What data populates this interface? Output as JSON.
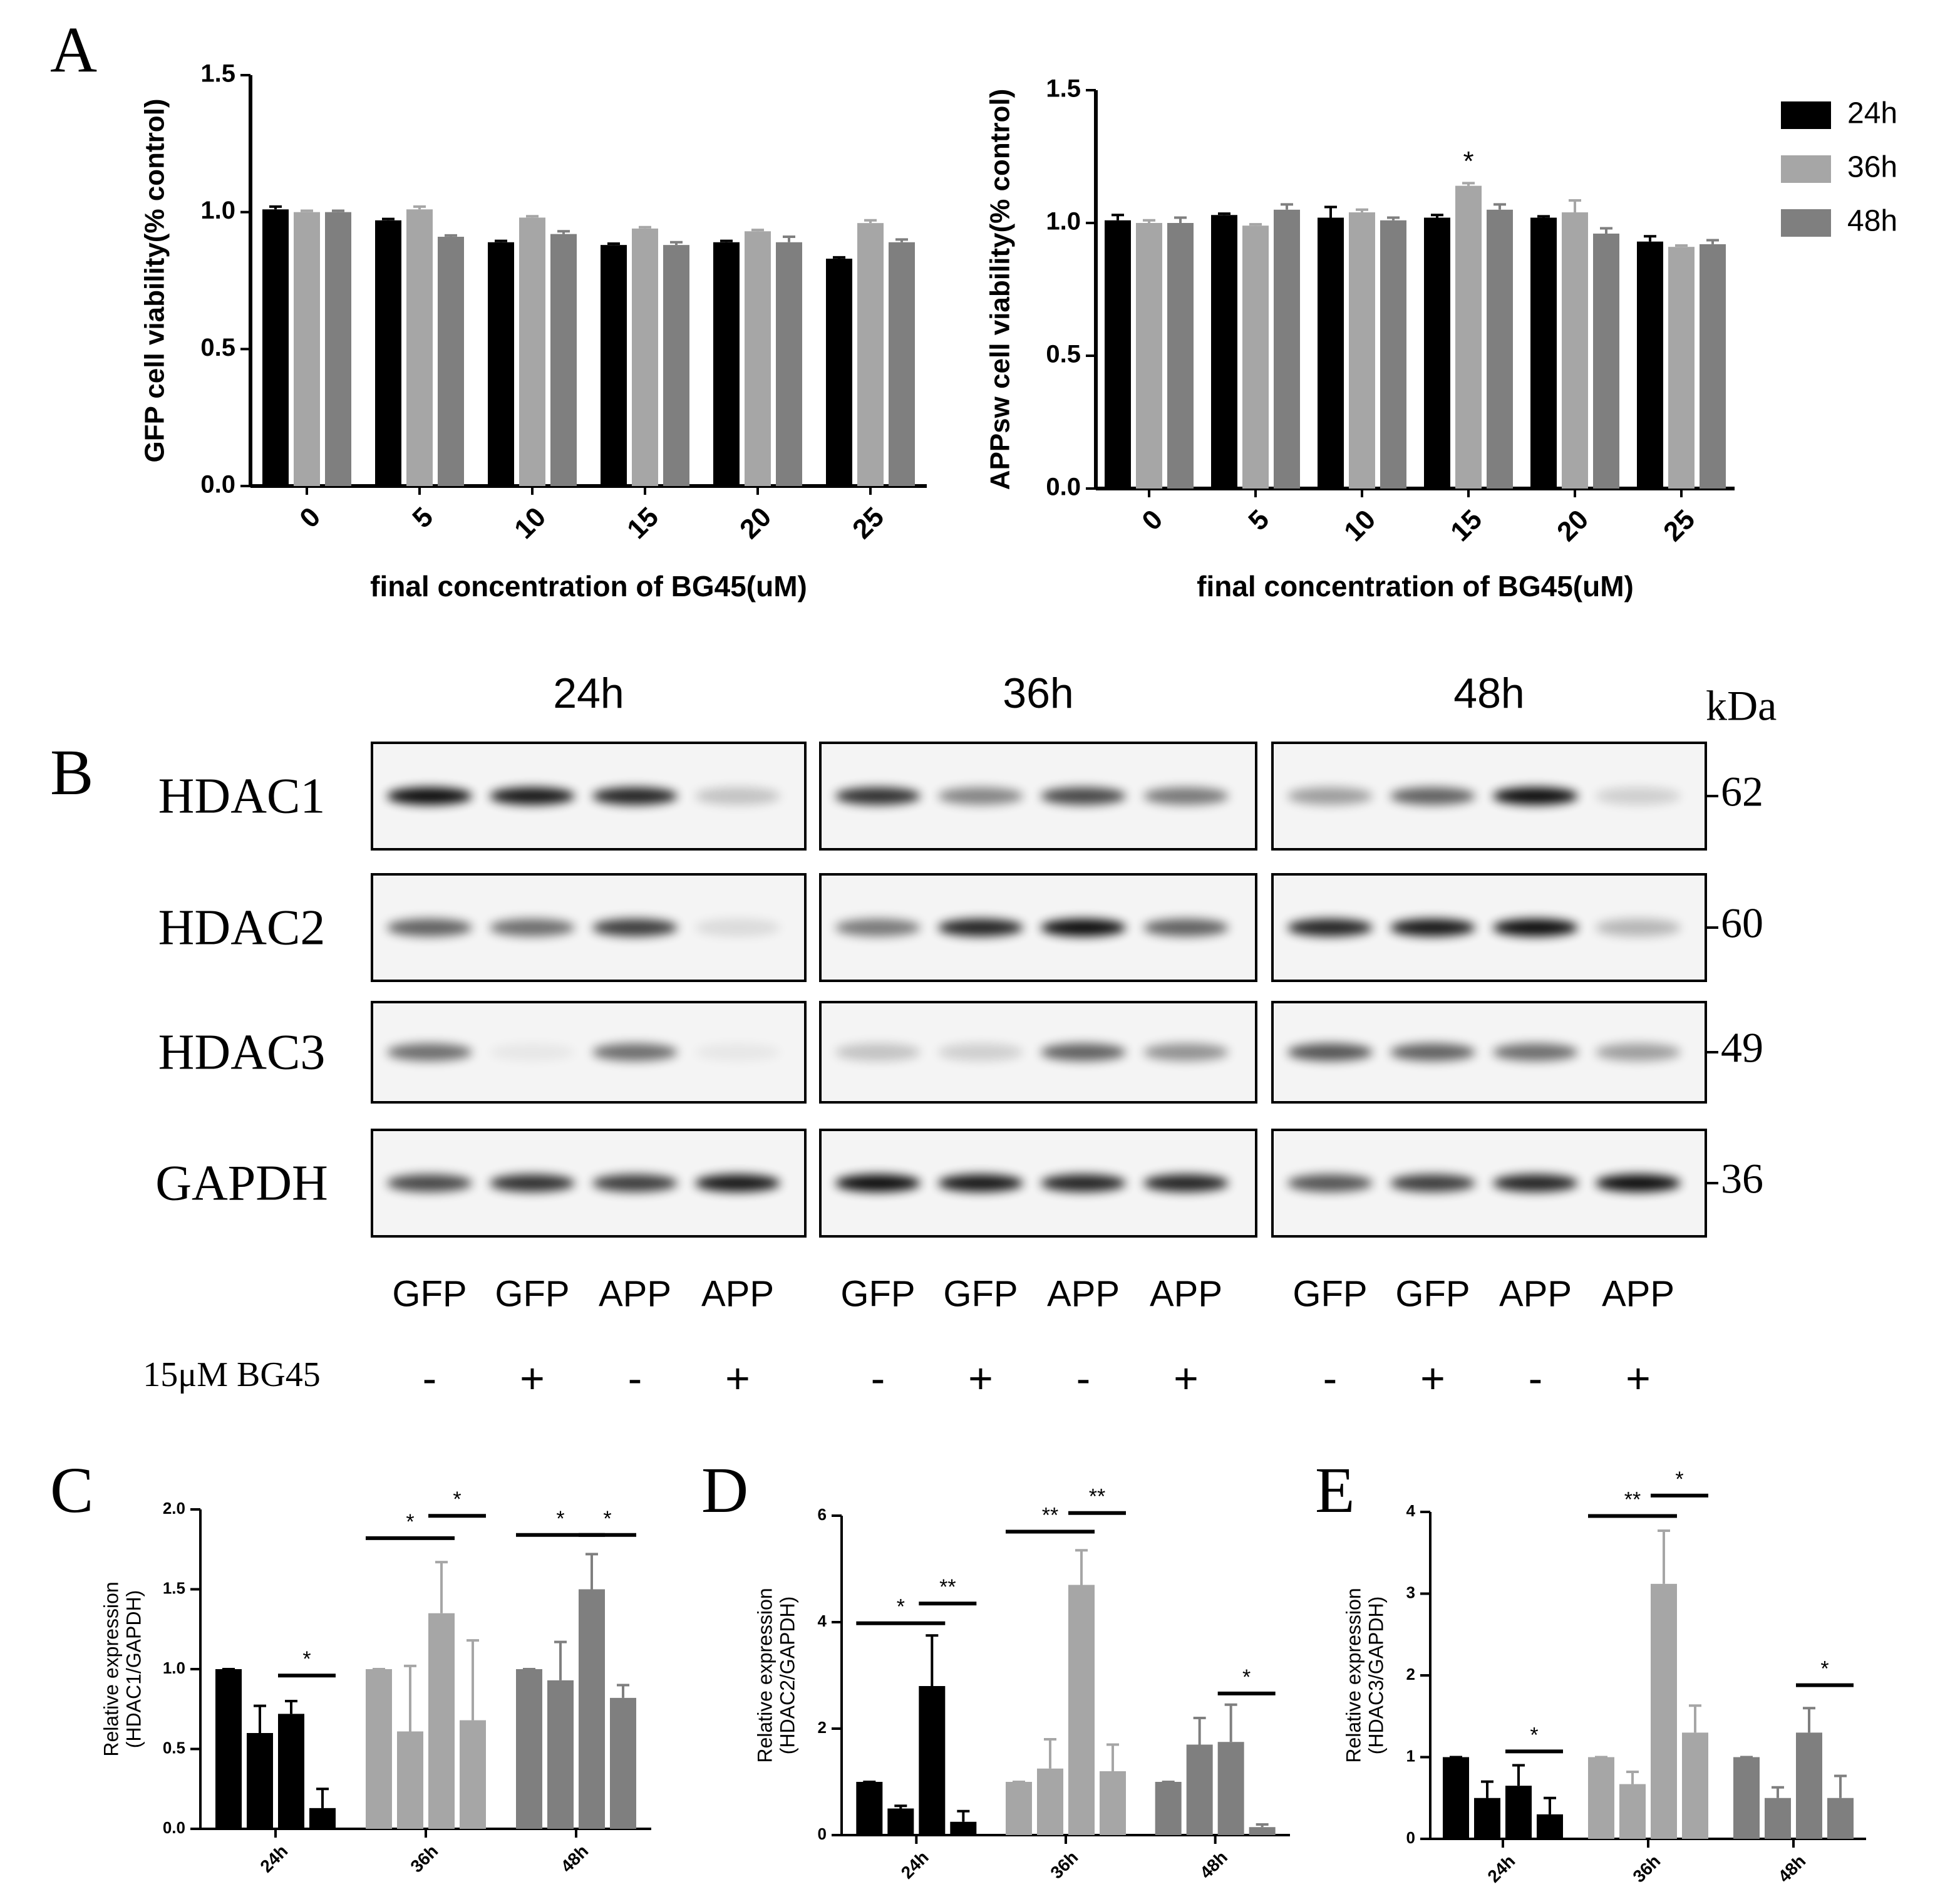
{
  "panel_labels": [
    "A",
    "B",
    "C",
    "D",
    "E"
  ],
  "chart_data": [
    {
      "type": "bar",
      "ylabel": "GFP cell viability(% control)",
      "xlabel": "final concentration of BG45(uM)",
      "categories": [
        "0",
        "5",
        "10",
        "15",
        "20",
        "25"
      ],
      "series": [
        {
          "name": "24h",
          "color": "#000000",
          "values": [
            1.01,
            0.97,
            0.89,
            0.88,
            0.89,
            0.83
          ],
          "errors": [
            0.01,
            0.005,
            0.005,
            0.005,
            0.005,
            0.005
          ]
        },
        {
          "name": "36h",
          "color": "#a6a6a6",
          "values": [
            1.0,
            1.01,
            0.98,
            0.94,
            0.93,
            0.96
          ],
          "errors": [
            0.005,
            0.01,
            0.005,
            0.005,
            0.005,
            0.01
          ]
        },
        {
          "name": "48h",
          "color": "#7f7f7f",
          "values": [
            1.0,
            0.91,
            0.92,
            0.88,
            0.89,
            0.89
          ],
          "errors": [
            0.005,
            0.005,
            0.01,
            0.01,
            0.02,
            0.01
          ]
        }
      ],
      "ylim": [
        0,
        1.5
      ],
      "yticks": [
        {
          "value": 0,
          "label": "0.0"
        },
        0.5,
        {
          "value": 1,
          "label": "1.0"
        },
        1.5
      ]
    },
    {
      "type": "bar",
      "ylabel": "APPsw cell viability(% control)",
      "xlabel": "final concentration of BG45(uM)",
      "categories": [
        "0",
        "5",
        "10",
        "15",
        "20",
        "25"
      ],
      "series": [
        {
          "name": "24h",
          "color": "#000000",
          "values": [
            1.01,
            1.03,
            1.02,
            1.02,
            1.02,
            0.93
          ],
          "errors": [
            0.02,
            0.005,
            0.04,
            0.01,
            0.005,
            0.02
          ]
        },
        {
          "name": "36h",
          "color": "#a6a6a6",
          "values": [
            1.0,
            0.99,
            1.04,
            1.14,
            1.04,
            0.91
          ],
          "errors": [
            0.01,
            0.005,
            0.01,
            0.01,
            0.045,
            0.005
          ]
        },
        {
          "name": "48h",
          "color": "#7f7f7f",
          "values": [
            1.0,
            1.05,
            1.01,
            1.05,
            0.96,
            0.92
          ],
          "errors": [
            0.02,
            0.02,
            0.01,
            0.02,
            0.02,
            0.015
          ]
        }
      ],
      "ylim": [
        0,
        1.5
      ],
      "yticks": [
        {
          "value": 0,
          "label": "0.0"
        },
        0.5,
        {
          "value": 1,
          "label": "1.0"
        },
        1.5
      ],
      "annotations": [
        "*"
      ],
      "legend": "right"
    },
    {
      "type": "grouped-bar",
      "ylabel": [
        "Relative expression",
        "(HDAC1/GAPDH)"
      ],
      "categories": [
        "24h",
        "36h",
        "48h"
      ],
      "category_colors": [
        "#000000",
        "#a6a6a6",
        "#7f7f7f"
      ],
      "series": [
        {
          "values": [
            1.0,
            1.0,
            1.0
          ],
          "errors": [
            0,
            0,
            0
          ]
        },
        {
          "values": [
            0.6,
            0.61,
            0.93
          ],
          "errors": [
            0.17,
            0.41,
            0.24
          ]
        },
        {
          "values": [
            0.72,
            1.35,
            1.5
          ],
          "errors": [
            0.08,
            0.32,
            0.22
          ]
        },
        {
          "values": [
            0.13,
            0.68,
            0.82
          ],
          "errors": [
            0.12,
            0.5,
            0.08
          ]
        }
      ],
      "ylim": [
        0,
        2
      ],
      "yticks": [
        {
          "value": 0,
          "label": "0.0"
        },
        0.5,
        {
          "value": 1,
          "label": "1.0"
        },
        1.5,
        {
          "value": 2,
          "label": "2.0"
        }
      ],
      "significance": [
        "*",
        "*",
        "*",
        "*",
        "*"
      ]
    },
    {
      "type": "grouped-bar",
      "ylabel": [
        "Relative expression",
        "(HDAC2/GAPDH)"
      ],
      "categories": [
        "24h",
        "36h",
        "48h"
      ],
      "category_colors": [
        "#000000",
        "#a6a6a6",
        "#7f7f7f"
      ],
      "series": [
        {
          "values": [
            1.0,
            1.0,
            1.0
          ],
          "errors": [
            0,
            0,
            0
          ]
        },
        {
          "values": [
            0.5,
            1.25,
            1.7
          ],
          "errors": [
            0.05,
            0.55,
            0.5
          ]
        },
        {
          "values": [
            2.8,
            4.7,
            1.75
          ],
          "errors": [
            0.95,
            0.65,
            0.7
          ]
        },
        {
          "values": [
            0.25,
            1.2,
            0.15
          ],
          "errors": [
            0.2,
            0.5,
            0.05
          ]
        }
      ],
      "ylim": [
        0,
        6
      ],
      "yticks": [
        0,
        2,
        4,
        6
      ],
      "significance": [
        "*",
        "**",
        "**",
        "**",
        "*"
      ]
    },
    {
      "type": "grouped-bar",
      "ylabel": [
        "Relative expression",
        "(HDAC3/GAPDH)"
      ],
      "categories": [
        "24h",
        "36h",
        "48h"
      ],
      "category_colors": [
        "#000000",
        "#a6a6a6",
        "#7f7f7f"
      ],
      "series": [
        {
          "values": [
            1.0,
            1.0,
            1.0
          ],
          "errors": [
            0,
            0,
            0
          ]
        },
        {
          "values": [
            0.5,
            0.67,
            0.5
          ],
          "errors": [
            0.2,
            0.15,
            0.13
          ]
        },
        {
          "values": [
            0.65,
            3.12,
            1.3
          ],
          "errors": [
            0.25,
            0.65,
            0.3
          ]
        },
        {
          "values": [
            0.3,
            1.3,
            0.5
          ],
          "errors": [
            0.2,
            0.33,
            0.27
          ]
        }
      ],
      "ylim": [
        0,
        4
      ],
      "yticks": [
        0,
        1,
        2,
        3,
        4
      ],
      "significance": [
        "*",
        "**",
        "*",
        "*"
      ]
    }
  ],
  "blot": {
    "times": [
      "24h",
      "36h",
      "48h"
    ],
    "unit": "kDa",
    "proteins": [
      "HDAC1",
      "HDAC2",
      "HDAC3",
      "GAPDH"
    ],
    "weights": [
      "62",
      "60",
      "49",
      "36"
    ],
    "lanes": [
      "GFP",
      "GFP",
      "APP",
      "APP"
    ],
    "treatment": "15μM BG45",
    "signs": [
      "-",
      "+",
      "-",
      "+"
    ]
  }
}
